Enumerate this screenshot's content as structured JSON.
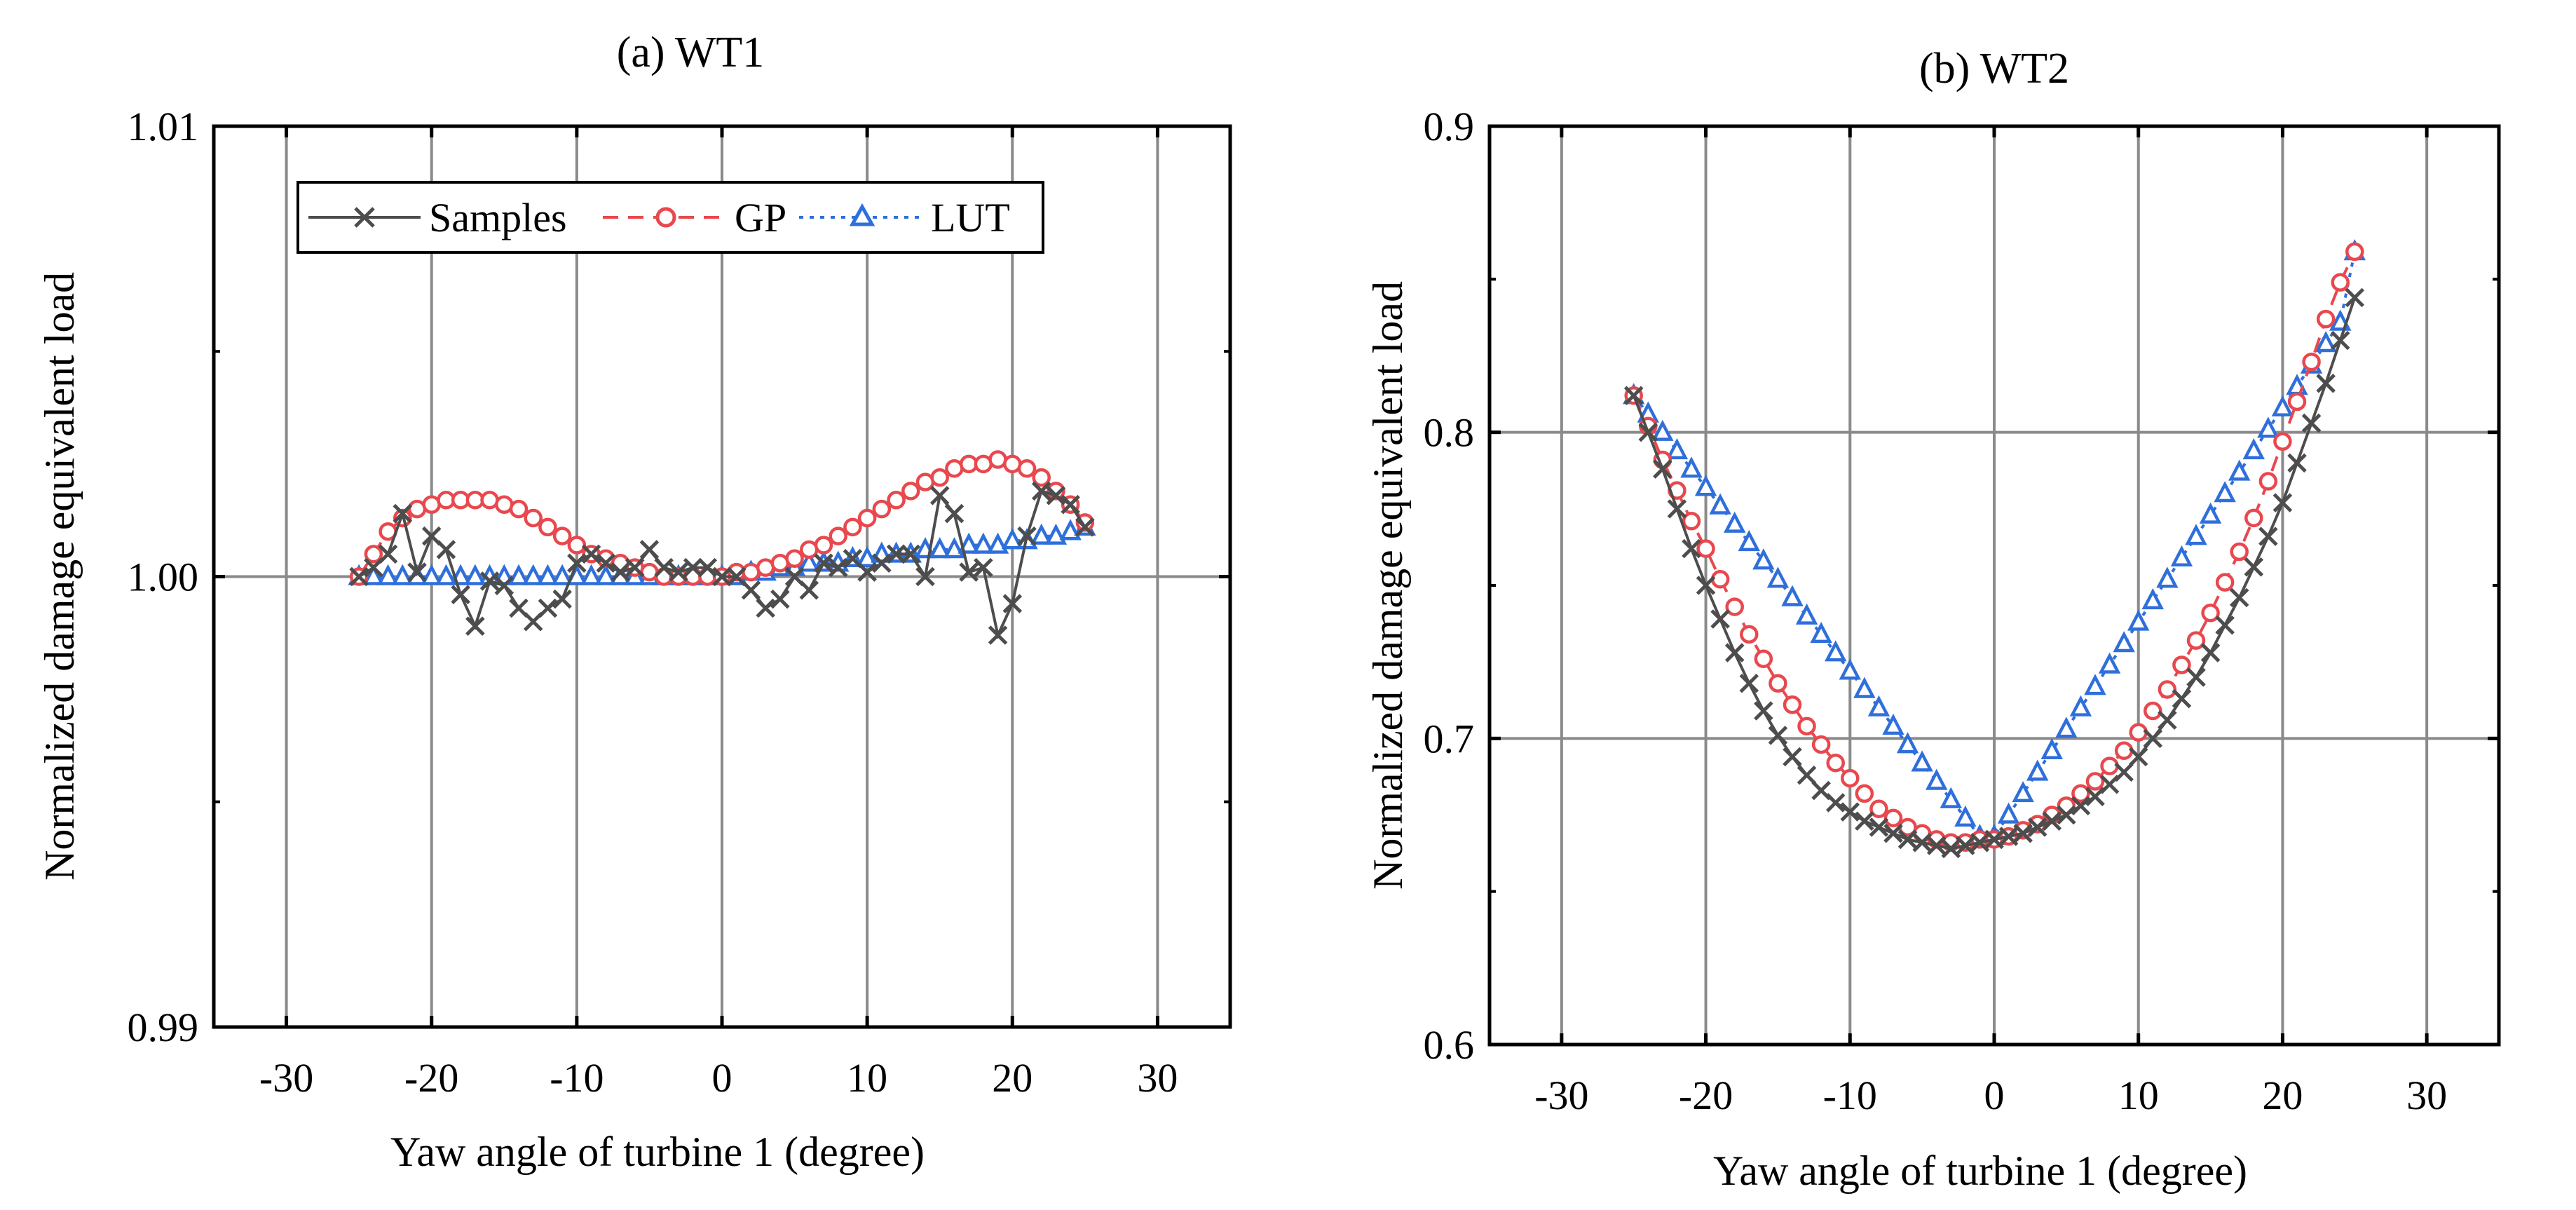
{
  "chart_data": [
    {
      "type": "line",
      "panel": "a",
      "title": "(a) WT1",
      "xlabel": "Yaw angle of turbine 1  (degree)",
      "ylabel": "Normalized damage equivalent load",
      "xlim": [
        -35,
        35
      ],
      "ylim": [
        0.99,
        1.01
      ],
      "xticks": [
        -30,
        -20,
        -10,
        0,
        10,
        20,
        30
      ],
      "xtick_labels": [
        "-30",
        "-20",
        "-10",
        "0",
        "10",
        "20",
        "30"
      ],
      "yticks": [
        0.99,
        1.0,
        1.01
      ],
      "ytick_labels": [
        "0.99",
        "1.00",
        "1.01"
      ],
      "grid": true,
      "legend": {
        "position": "top",
        "entries": [
          "Samples",
          "GP",
          "LUT"
        ]
      },
      "x": [
        -25,
        -24,
        -23,
        -22,
        -21,
        -20,
        -19,
        -18,
        -17,
        -16,
        -15,
        -14,
        -13,
        -12,
        -11,
        -10,
        -9,
        -8,
        -7,
        -6,
        -5,
        -4,
        -3,
        -2,
        -1,
        0,
        1,
        2,
        3,
        4,
        5,
        6,
        7,
        8,
        9,
        10,
        11,
        12,
        13,
        14,
        15,
        16,
        17,
        18,
        19,
        20,
        21,
        22,
        23,
        24,
        25
      ],
      "series": [
        {
          "name": "Samples",
          "color": "#4d4d4d",
          "marker": "x",
          "values": [
            1.0,
            1.0002,
            1.0005,
            1.0014,
            1.0001,
            1.0009,
            1.0006,
            0.9996,
            0.9989,
            0.9999,
            0.9998,
            0.9993,
            0.999,
            0.9993,
            0.9995,
            1.0003,
            1.0005,
            1.0003,
            1.0001,
            1.0002,
            1.0006,
            1.0002,
            1.0001,
            1.0002,
            1.0002,
            1.0,
            1.0,
            0.9997,
            0.9993,
            0.9995,
            1.0,
            0.9997,
            1.0003,
            1.0002,
            1.0004,
            1.0001,
            1.0003,
            1.0005,
            1.0005,
            1.0,
            1.0018,
            1.0014,
            1.0001,
            1.0002,
            0.9987,
            0.9994,
            1.0009,
            1.0019,
            1.0018,
            1.0016,
            1.0011
          ]
        },
        {
          "name": "GP",
          "color": "#e8484e",
          "marker": "circle",
          "values": [
            1.0,
            1.0005,
            1.001,
            1.0013,
            1.0015,
            1.0016,
            1.0017,
            1.0017,
            1.0017,
            1.0017,
            1.0016,
            1.0015,
            1.0013,
            1.0011,
            1.0009,
            1.0007,
            1.0005,
            1.0004,
            1.0003,
            1.0002,
            1.0001,
            1.0,
            1.0,
            1.0,
            1.0,
            1.0,
            1.0001,
            1.0001,
            1.0002,
            1.0003,
            1.0004,
            1.0006,
            1.0007,
            1.0009,
            1.0011,
            1.0013,
            1.0015,
            1.0017,
            1.0019,
            1.0021,
            1.0022,
            1.0024,
            1.0025,
            1.0025,
            1.0026,
            1.0025,
            1.0024,
            1.0022,
            1.0019,
            1.0016,
            1.0012
          ]
        },
        {
          "name": "LUT",
          "color": "#2f6fdb",
          "marker": "triangle",
          "values": [
            1.0,
            1.0,
            1.0,
            1.0,
            1.0,
            1.0,
            1.0,
            1.0,
            1.0,
            1.0,
            1.0,
            1.0,
            1.0,
            1.0,
            1.0,
            1.0,
            1.0,
            1.0,
            1.0,
            1.0,
            1.0,
            1.0,
            1.0,
            1.0,
            1.0,
            1.0,
            1.0,
            1.0001,
            1.0001,
            1.0002,
            1.0002,
            1.0003,
            1.0003,
            1.0003,
            1.0004,
            1.0004,
            1.0005,
            1.0005,
            1.0005,
            1.0006,
            1.0006,
            1.0006,
            1.0007,
            1.0007,
            1.0007,
            1.0008,
            1.0008,
            1.0009,
            1.0009,
            1.001,
            1.0011
          ]
        }
      ]
    },
    {
      "type": "line",
      "panel": "b",
      "title": "(b) WT2",
      "xlabel": "Yaw angle of turbine 1  (degree)",
      "ylabel": "Normalized damage equivalent load",
      "xlim": [
        -35,
        35
      ],
      "ylim": [
        0.6,
        0.9
      ],
      "xticks": [
        -30,
        -20,
        -10,
        0,
        10,
        20,
        30
      ],
      "xtick_labels": [
        "-30",
        "-20",
        "-10",
        "0",
        "10",
        "20",
        "30"
      ],
      "yticks": [
        0.6,
        0.7,
        0.8,
        0.9
      ],
      "ytick_labels": [
        "0.6",
        "0.7",
        "0.8",
        "0.9"
      ],
      "grid": true,
      "x": [
        -25,
        -24,
        -23,
        -22,
        -21,
        -20,
        -19,
        -18,
        -17,
        -16,
        -15,
        -14,
        -13,
        -12,
        -11,
        -10,
        -9,
        -8,
        -7,
        -6,
        -5,
        -4,
        -3,
        -2,
        -1,
        0,
        1,
        2,
        3,
        4,
        5,
        6,
        7,
        8,
        9,
        10,
        11,
        12,
        13,
        14,
        15,
        16,
        17,
        18,
        19,
        20,
        21,
        22,
        23,
        24,
        25
      ],
      "series": [
        {
          "name": "Samples",
          "color": "#4d4d4d",
          "marker": "x",
          "values": [
            0.812,
            0.8,
            0.788,
            0.775,
            0.762,
            0.75,
            0.739,
            0.728,
            0.718,
            0.709,
            0.701,
            0.694,
            0.688,
            0.683,
            0.679,
            0.676,
            0.673,
            0.671,
            0.669,
            0.667,
            0.666,
            0.665,
            0.664,
            0.665,
            0.666,
            0.667,
            0.668,
            0.669,
            0.671,
            0.673,
            0.675,
            0.678,
            0.681,
            0.685,
            0.689,
            0.694,
            0.7,
            0.706,
            0.713,
            0.72,
            0.728,
            0.737,
            0.746,
            0.756,
            0.766,
            0.777,
            0.79,
            0.803,
            0.816,
            0.83,
            0.844
          ]
        },
        {
          "name": "GP",
          "color": "#e8484e",
          "marker": "circle",
          "values": [
            0.812,
            0.802,
            0.791,
            0.781,
            0.771,
            0.762,
            0.752,
            0.743,
            0.734,
            0.726,
            0.718,
            0.711,
            0.704,
            0.698,
            0.692,
            0.687,
            0.682,
            0.677,
            0.674,
            0.671,
            0.669,
            0.667,
            0.666,
            0.666,
            0.667,
            0.667,
            0.668,
            0.67,
            0.672,
            0.675,
            0.678,
            0.682,
            0.686,
            0.691,
            0.696,
            0.702,
            0.709,
            0.716,
            0.724,
            0.732,
            0.741,
            0.751,
            0.761,
            0.772,
            0.784,
            0.797,
            0.81,
            0.823,
            0.837,
            0.849,
            0.859
          ]
        },
        {
          "name": "LUT",
          "color": "#2f6fdb",
          "marker": "triangle",
          "values": [
            0.812,
            0.806,
            0.8,
            0.794,
            0.788,
            0.782,
            0.776,
            0.77,
            0.764,
            0.758,
            0.752,
            0.746,
            0.74,
            0.734,
            0.728,
            0.722,
            0.716,
            0.71,
            0.704,
            0.698,
            0.692,
            0.686,
            0.68,
            0.674,
            0.668,
            0.668,
            0.675,
            0.682,
            0.689,
            0.696,
            0.703,
            0.71,
            0.717,
            0.724,
            0.731,
            0.738,
            0.745,
            0.752,
            0.759,
            0.766,
            0.773,
            0.78,
            0.787,
            0.794,
            0.801,
            0.808,
            0.815,
            0.822,
            0.829,
            0.836,
            0.859
          ]
        }
      ]
    }
  ]
}
